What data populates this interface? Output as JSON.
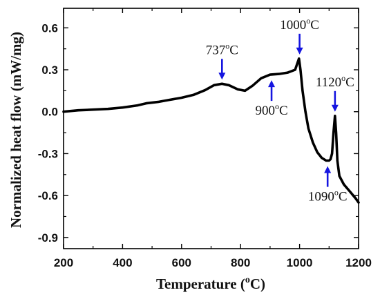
{
  "chart_data": {
    "type": "line",
    "xlabel": "Temperature (°C)",
    "xlabel_parts": {
      "pre": "Temperature (",
      "sup": "o",
      "post": "C)"
    },
    "ylabel": "Normalized heat flow (mW/mg)",
    "xlim": [
      200,
      1200
    ],
    "ylim": [
      -0.98,
      0.74
    ],
    "x_ticks": [
      200,
      400,
      600,
      800,
      1000,
      1200
    ],
    "y_ticks": [
      0.6,
      0.3,
      0.0,
      -0.3,
      -0.6,
      -0.9
    ],
    "y_tick_labels": [
      "0.6",
      "0.3",
      "0.0",
      "-0.3",
      "-0.6",
      "-0.9"
    ],
    "grid": false,
    "line_color": "#000000",
    "arrow_color": "#1515e0",
    "series": [
      {
        "x": [
          200,
          250,
          300,
          350,
          400,
          450,
          480,
          520,
          560,
          600,
          640,
          680,
          710,
          737,
          760,
          790,
          815,
          840,
          870,
          900,
          930,
          960,
          985,
          993,
          998,
          1003,
          1010,
          1020,
          1030,
          1045,
          1060,
          1075,
          1090,
          1100,
          1105,
          1110,
          1115,
          1120,
          1124,
          1128,
          1135,
          1150,
          1170,
          1190,
          1200
        ],
        "y": [
          0.0,
          0.01,
          0.015,
          0.02,
          0.03,
          0.045,
          0.06,
          0.07,
          0.085,
          0.1,
          0.12,
          0.155,
          0.19,
          0.2,
          0.19,
          0.16,
          0.15,
          0.185,
          0.24,
          0.265,
          0.27,
          0.28,
          0.3,
          0.35,
          0.38,
          0.3,
          0.15,
          0.0,
          -0.12,
          -0.22,
          -0.29,
          -0.33,
          -0.35,
          -0.35,
          -0.34,
          -0.3,
          -0.15,
          -0.03,
          -0.15,
          -0.35,
          -0.46,
          -0.52,
          -0.57,
          -0.62,
          -0.65
        ]
      }
    ],
    "annotations": [
      {
        "label": "737",
        "x": 737,
        "y": 0.2,
        "direction": "down"
      },
      {
        "label": "900",
        "x": 905,
        "y": 0.265,
        "direction": "up"
      },
      {
        "label": "1000",
        "x": 1000,
        "y": 0.38,
        "direction": "down"
      },
      {
        "label": "1090",
        "x": 1095,
        "y": -0.35,
        "direction": "up"
      },
      {
        "label": "1120",
        "x": 1120,
        "y": -0.03,
        "direction": "down"
      }
    ],
    "annotation_unit": {
      "sup": "o",
      "post": "C"
    }
  }
}
